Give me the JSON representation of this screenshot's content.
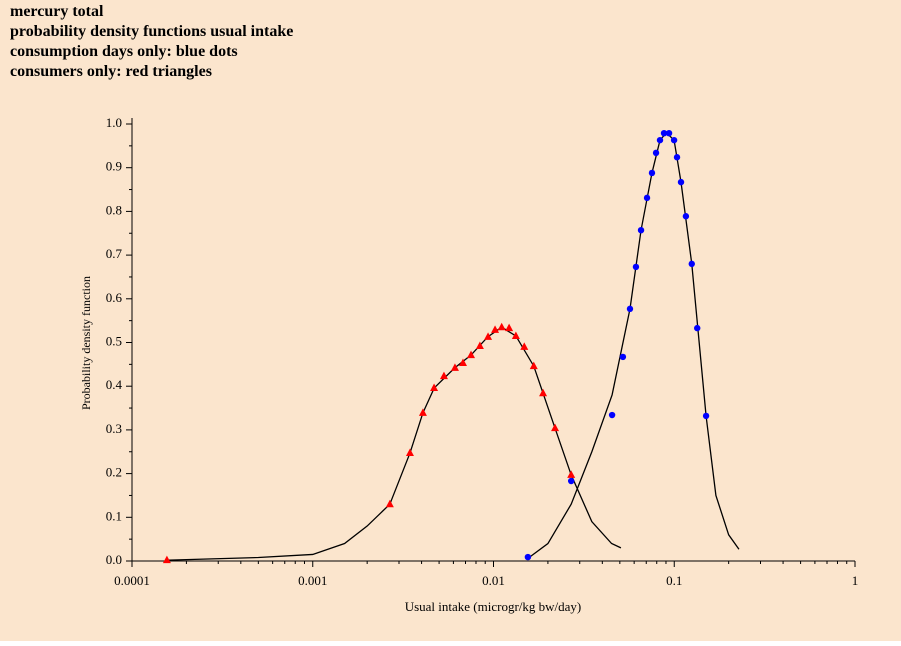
{
  "chart_data": {
    "type": "scatter",
    "title": [
      "mercury total",
      "probability density functions usual intake",
      "consumption days only: blue dots",
      "consumers only: red triangles"
    ],
    "x_label": "Usual intake (microgr/kg bw/day)",
    "y_label": "Probability density function",
    "x_log": true,
    "x_minor_ticks": true,
    "xlim": [
      0.0001,
      1
    ],
    "xticks": [
      0.0001,
      0.001,
      0.01,
      0.1,
      1
    ],
    "ylim": [
      0,
      1
    ],
    "yticks": [
      {
        "value": 0,
        "label": "0.0"
      },
      0.1,
      0.2,
      0.3,
      0.4,
      0.5,
      0.6,
      0.7,
      0.8,
      0.9,
      {
        "value": 1,
        "label": "1.0"
      }
    ],
    "background": "#fbe5cd",
    "series": [
      {
        "style": "line",
        "color": "#000000",
        "x": [
          0.00016,
          0.0005,
          0.001,
          0.0015,
          0.002,
          0.00267,
          0.00345,
          0.00407,
          0.0047,
          0.0061,
          0.0075,
          0.0093,
          0.0111,
          0.0133,
          0.0167,
          0.0219,
          0.0269,
          0.035,
          0.045,
          0.0507
        ],
        "values": [
          0.002,
          0.008,
          0.015,
          0.04,
          0.08,
          0.13,
          0.247,
          0.339,
          0.396,
          0.442,
          0.471,
          0.513,
          0.535,
          0.515,
          0.446,
          0.304,
          0.197,
          0.09,
          0.04,
          0.03
        ]
      },
      {
        "style": "line",
        "color": "#000000",
        "x": [
          0.0155,
          0.02,
          0.0269,
          0.035,
          0.0453,
          0.0569,
          0.0655,
          0.0753,
          0.0834,
          0.0905,
          0.0998,
          0.109,
          0.125,
          0.15,
          0.17,
          0.2,
          0.228
        ],
        "values": [
          0.006,
          0.04,
          0.13,
          0.25,
          0.38,
          0.577,
          0.757,
          0.888,
          0.963,
          0.98,
          0.963,
          0.867,
          0.68,
          0.332,
          0.15,
          0.06,
          0.027
        ]
      },
      {
        "style": "marker",
        "marker": "triangle",
        "color": "#ff0000",
        "x": [
          0.000156,
          0.00267,
          0.00345,
          0.00407,
          0.00469,
          0.00532,
          0.00612,
          0.00678,
          0.00751,
          0.00841,
          0.00933,
          0.0102,
          0.0111,
          0.0122,
          0.0133,
          0.0148,
          0.0167,
          0.0188,
          0.0219,
          0.0269
        ],
        "values": [
          0.002,
          0.13,
          0.247,
          0.339,
          0.396,
          0.423,
          0.442,
          0.453,
          0.471,
          0.492,
          0.513,
          0.529,
          0.535,
          0.533,
          0.515,
          0.49,
          0.446,
          0.384,
          0.304,
          0.197
        ]
      },
      {
        "style": "marker",
        "marker": "circle",
        "color": "#0000ff",
        "x": [
          0.0155,
          0.0269,
          0.0453,
          0.052,
          0.0569,
          0.0614,
          0.0655,
          0.0707,
          0.0753,
          0.0793,
          0.0834,
          0.0878,
          0.0936,
          0.0998,
          0.1036,
          0.109,
          0.116,
          0.125,
          0.134,
          0.15
        ],
        "values": [
          0.009,
          0.183,
          0.334,
          0.467,
          0.577,
          0.673,
          0.757,
          0.831,
          0.888,
          0.934,
          0.963,
          0.979,
          0.979,
          0.963,
          0.924,
          0.867,
          0.789,
          0.68,
          0.533,
          0.332
        ]
      }
    ]
  }
}
